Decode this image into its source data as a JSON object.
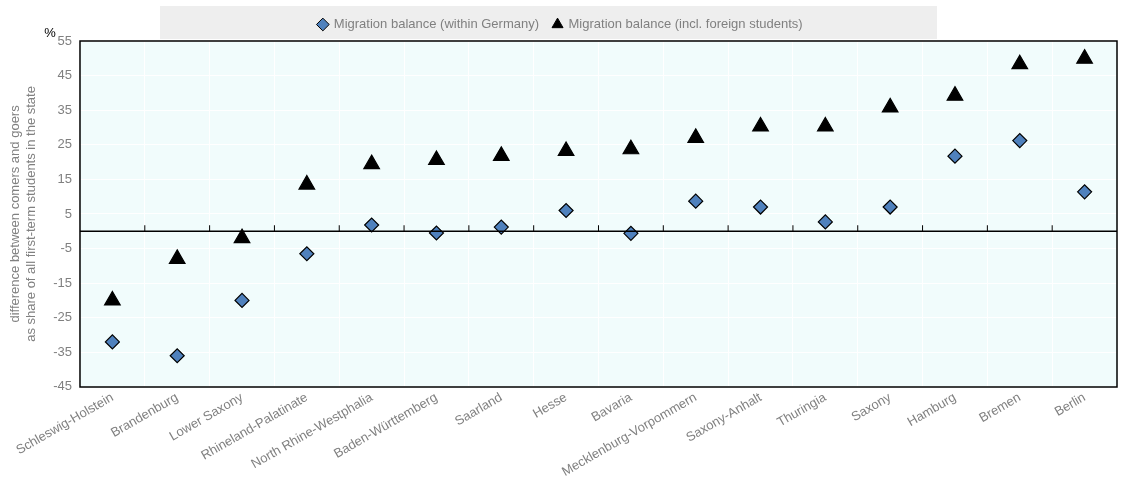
{
  "chart_data": {
    "type": "scatter",
    "ylabel": "difference between comers and goers\nas share of all first-term students in the state",
    "annotations": [
      "%"
    ],
    "categories": [
      "Schleswig-Holstein",
      "Brandenburg",
      "Lower Saxony",
      "Rhineland-Palatinate",
      "North Rhine-Westphalia",
      "Baden-Württemberg",
      "Saarland",
      "Hesse",
      "Bavaria",
      "Mecklenburg-Vorpommern",
      "Saxony-Anhalt",
      "Thuringia",
      "Saxony",
      "Hamburg",
      "Bremen",
      "Berlin"
    ],
    "series": [
      {
        "name": "Migration balance (within Germany)",
        "color": "#4f81bd",
        "marker": "diamond",
        "values": [
          -32,
          -36,
          -20,
          -6.5,
          1.8,
          -0.5,
          1.2,
          6,
          -0.6,
          8.7,
          7,
          2.7,
          7,
          21.7,
          26.2,
          11.4
        ]
      },
      {
        "name": "Migration balance (incl. foreign students)",
        "color": "#000000",
        "marker": "triangle",
        "values": [
          -20,
          -8,
          -2,
          13.5,
          19.4,
          20.6,
          21.8,
          23.2,
          23.7,
          27,
          30.3,
          30.3,
          35.8,
          39.2,
          48.3,
          49.9
        ]
      }
    ],
    "ylim": [
      -45,
      55
    ],
    "yticks": [
      -45,
      -35,
      -25,
      -15,
      -5,
      5,
      15,
      25,
      35,
      45,
      55
    ],
    "grid": true,
    "legend": "top"
  }
}
